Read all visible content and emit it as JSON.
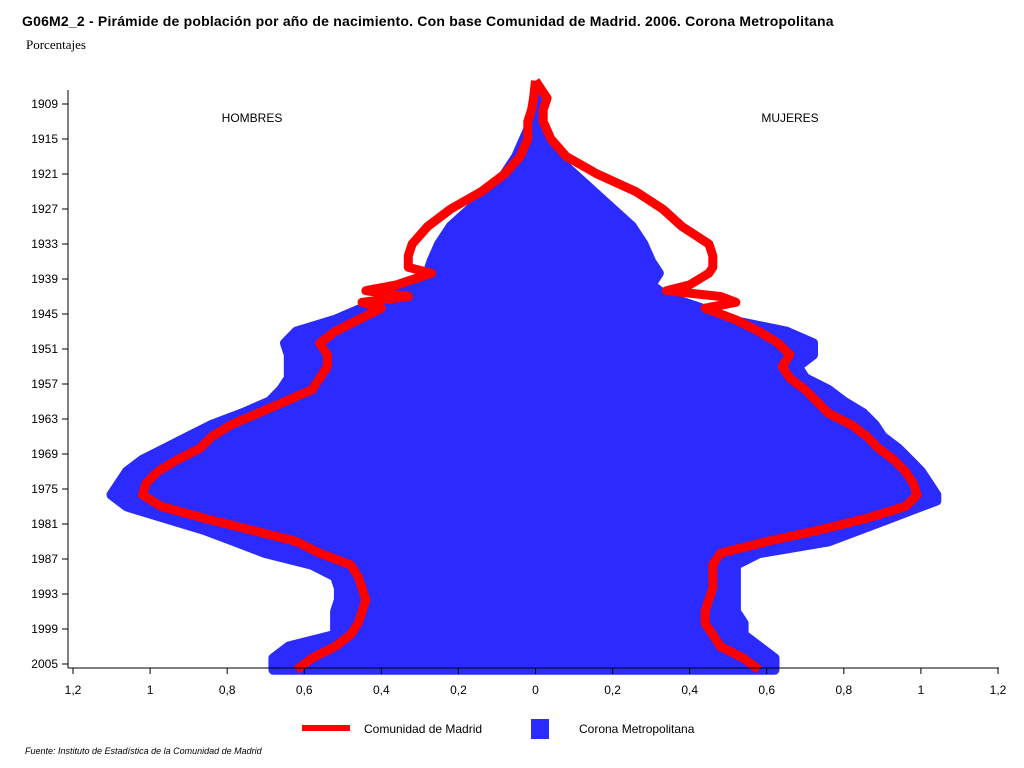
{
  "title": "G06M2_2 - Pirámide de población por año de nacimiento. Con base Comunidad de Madrid.  2006.  Corona Metropolitana",
  "subtitle": "Porcentajes",
  "source": "Fuente: Instituto de Estadística de la Comunidad de Madrid",
  "chart_data": {
    "type": "area",
    "orientation": "horizontal-pyramid",
    "left_label": "HOMBRES",
    "right_label": "MUJERES",
    "y_ticks": [
      "1909",
      "1915",
      "1921",
      "1927",
      "1933",
      "1939",
      "1945",
      "1951",
      "1957",
      "1963",
      "1969",
      "1975",
      "1981",
      "1987",
      "1993",
      "1999",
      "2005"
    ],
    "x_ticks": [
      "1,2",
      "1",
      "0,8",
      "0,6",
      "0,4",
      "0,2",
      "0",
      "0,2",
      "0,4",
      "0,6",
      "0,8",
      "1",
      "1,2"
    ],
    "xlim": [
      -1.2,
      1.2
    ],
    "ylim": [
      1905,
      2006
    ],
    "grid": false,
    "legend_position": "bottom",
    "colors": {
      "area": "#2b2bff",
      "line": "#ff0000"
    },
    "series": [
      {
        "name": "Corona Metropolitana",
        "kind": "area",
        "years": [
          1906,
          1909,
          1912,
          1915,
          1918,
          1921,
          1924,
          1927,
          1930,
          1933,
          1936,
          1938,
          1940,
          1942,
          1944,
          1946,
          1948,
          1950,
          1952,
          1954,
          1956,
          1958,
          1960,
          1962,
          1964,
          1966,
          1968,
          1970,
          1972,
          1974,
          1976,
          1977,
          1978,
          1980,
          1982,
          1984,
          1986,
          1988,
          1990,
          1992,
          1994,
          1996,
          1998,
          2000,
          2002,
          2004,
          2006
        ],
        "men": [
          0.0,
          0.005,
          0.01,
          0.03,
          0.05,
          0.08,
          0.12,
          0.17,
          0.22,
          0.25,
          0.27,
          0.28,
          0.32,
          0.38,
          0.45,
          0.52,
          0.62,
          0.65,
          0.64,
          0.64,
          0.64,
          0.66,
          0.69,
          0.76,
          0.84,
          0.9,
          0.96,
          1.02,
          1.06,
          1.08,
          1.1,
          1.08,
          1.06,
          0.96,
          0.86,
          0.78,
          0.7,
          0.58,
          0.52,
          0.51,
          0.51,
          0.52,
          0.52,
          0.52,
          0.64,
          0.68,
          0.68
        ],
        "women": [
          0.0,
          0.005,
          0.01,
          0.03,
          0.05,
          0.1,
          0.15,
          0.2,
          0.25,
          0.28,
          0.3,
          0.32,
          0.3,
          0.34,
          0.43,
          0.5,
          0.65,
          0.72,
          0.72,
          0.68,
          0.7,
          0.76,
          0.8,
          0.85,
          0.88,
          0.9,
          0.94,
          0.97,
          1.0,
          1.02,
          1.04,
          1.04,
          1.0,
          0.92,
          0.84,
          0.76,
          0.58,
          0.52,
          0.52,
          0.52,
          0.52,
          0.52,
          0.54,
          0.54,
          0.58,
          0.62,
          0.62
        ]
      },
      {
        "name": "Comunidad de Madrid",
        "kind": "line",
        "years": [
          1905,
          1908,
          1910,
          1912,
          1915,
          1918,
          1921,
          1924,
          1927,
          1930,
          1933,
          1935,
          1937,
          1938,
          1940,
          1941,
          1942,
          1943,
          1944,
          1946,
          1948,
          1950,
          1952,
          1954,
          1956,
          1958,
          1960,
          1962,
          1964,
          1966,
          1968,
          1970,
          1972,
          1974,
          1976,
          1978,
          1980,
          1982,
          1984,
          1986,
          1988,
          1990,
          1992,
          1994,
          1996,
          1998,
          2000,
          2002,
          2004,
          2006
        ],
        "men": [
          0.0,
          0.005,
          0.01,
          0.02,
          0.02,
          0.04,
          0.08,
          0.14,
          0.22,
          0.28,
          0.32,
          0.33,
          0.33,
          0.27,
          0.36,
          0.44,
          0.33,
          0.45,
          0.4,
          0.46,
          0.52,
          0.56,
          0.54,
          0.54,
          0.56,
          0.58,
          0.65,
          0.72,
          0.79,
          0.84,
          0.87,
          0.93,
          0.98,
          1.01,
          1.02,
          0.97,
          0.86,
          0.74,
          0.62,
          0.56,
          0.48,
          0.46,
          0.45,
          0.44,
          0.45,
          0.46,
          0.48,
          0.52,
          0.58,
          0.62
        ],
        "women": [
          0.0,
          0.03,
          0.02,
          0.02,
          0.04,
          0.08,
          0.16,
          0.26,
          0.33,
          0.38,
          0.45,
          0.46,
          0.46,
          0.45,
          0.4,
          0.34,
          0.48,
          0.52,
          0.44,
          0.52,
          0.58,
          0.63,
          0.66,
          0.64,
          0.66,
          0.7,
          0.73,
          0.76,
          0.82,
          0.86,
          0.89,
          0.93,
          0.96,
          0.98,
          0.99,
          0.96,
          0.86,
          0.74,
          0.6,
          0.48,
          0.46,
          0.46,
          0.46,
          0.45,
          0.44,
          0.44,
          0.46,
          0.48,
          0.54,
          0.58
        ]
      }
    ]
  }
}
